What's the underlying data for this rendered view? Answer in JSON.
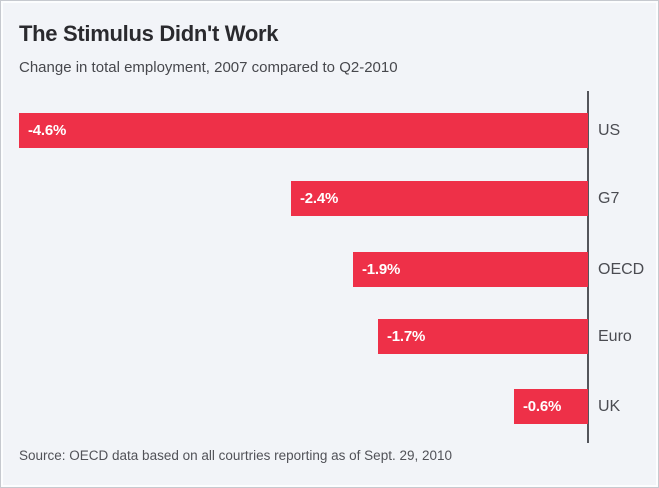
{
  "header": {
    "title": "The Stimulus Didn't Work",
    "subtitle": "Change in total employment, 2007 compared to Q2-2010"
  },
  "chart_data": {
    "type": "bar",
    "orientation": "horizontal",
    "baseline": "right",
    "title": "The Stimulus Didn't Work",
    "subtitle": "Change in total employment, 2007 compared to Q2-2010",
    "categories": [
      "US",
      "G7",
      "OECD",
      "Euro",
      "UK"
    ],
    "values": [
      -4.6,
      -2.4,
      -1.9,
      -1.7,
      -0.6
    ],
    "value_labels": [
      "-4.6%",
      "-2.4%",
      "-1.9%",
      "-1.7%",
      "-0.6%"
    ],
    "unit": "percent",
    "xlim": [
      -4.75,
      0
    ],
    "grid": false,
    "legend": false,
    "bar_color": "#ee3048",
    "axis_color": "#54555b"
  },
  "footer": {
    "source": "Source: OECD data based on all courtries reporting as of Sept. 29, 2010"
  },
  "colors": {
    "background": "#f2f4f8",
    "border": "#c6c9cf",
    "title_text": "#2a2a2e",
    "muted_text": "#4b4c52",
    "bar": "#ee3048",
    "value_label_text": "#ffffff"
  }
}
